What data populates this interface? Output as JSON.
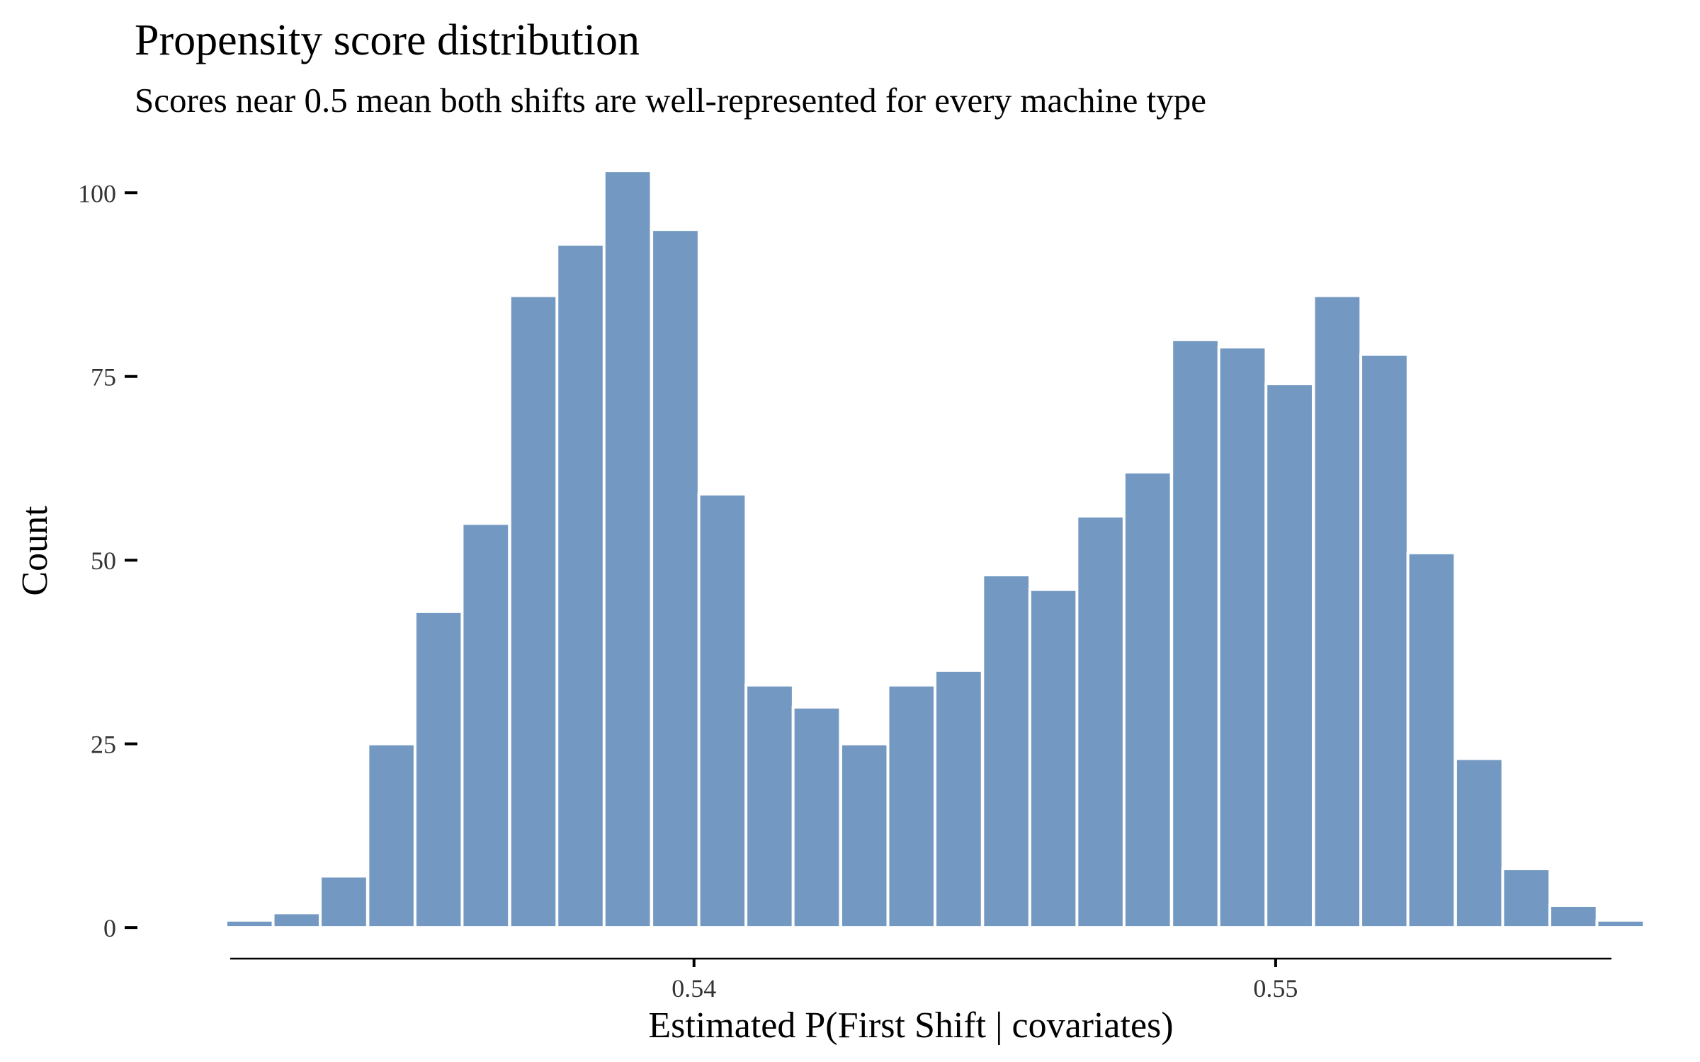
{
  "chart_data": {
    "type": "bar",
    "title": "Propensity score distribution",
    "subtitle": "Scores near 0.5 mean both shifts are well-represented for every machine type",
    "xlabel": "Estimated P(First Shift | covariates)",
    "ylabel": "Count",
    "xlim": [
      0.5316,
      0.5562
    ],
    "ylim": [
      -5,
      106
    ],
    "xticks": [
      0.54,
      0.55
    ],
    "xtick_labels": [
      "0.54",
      "0.55"
    ],
    "yticks": [
      0,
      25,
      50,
      75,
      100
    ],
    "ytick_labels": [
      "0",
      "25",
      "50",
      "75",
      "100"
    ],
    "bin_width": 0.000813,
    "bin_centers": [
      0.53236,
      0.53317,
      0.53398,
      0.5348,
      0.53561,
      0.53642,
      0.53724,
      0.53805,
      0.53886,
      0.53968,
      0.54049,
      0.5413,
      0.54211,
      0.54293,
      0.54374,
      0.54455,
      0.54537,
      0.54618,
      0.54699,
      0.5478,
      0.54862,
      0.54943,
      0.55024,
      0.55106,
      0.55187,
      0.55268,
      0.5535,
      0.55431,
      0.55512,
      0.55593
    ],
    "values": [
      1,
      2,
      7,
      25,
      43,
      55,
      86,
      93,
      103,
      95,
      59,
      33,
      30,
      25,
      33,
      35,
      48,
      46,
      56,
      62,
      80,
      79,
      74,
      86,
      78,
      51,
      23,
      8,
      3,
      1
    ],
    "bar_color": "#7399C2",
    "grid": false,
    "legend": "none"
  }
}
